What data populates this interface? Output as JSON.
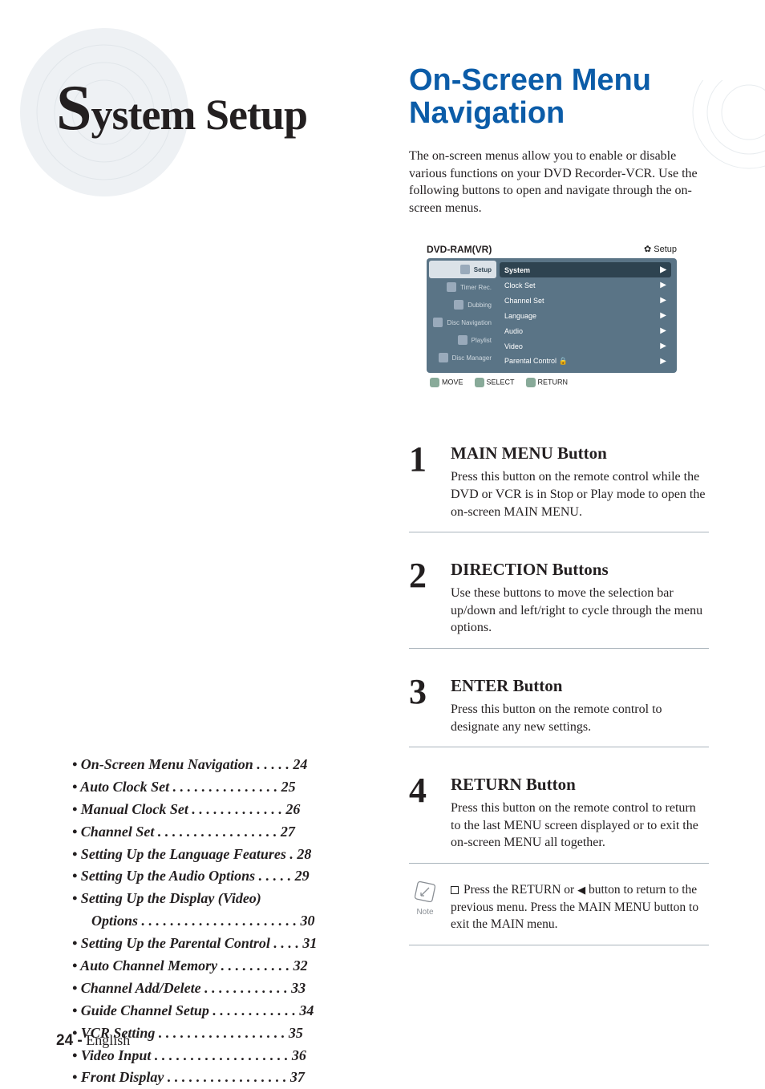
{
  "left": {
    "title_pre": "S",
    "title_rest": "ystem Setup",
    "sidebar_tab_pre": "S",
    "sidebar_tab_rest": "ystem Setup",
    "toc": [
      {
        "text": "On-Screen Menu Navigation",
        "dots": " . . . . . ",
        "page": "24"
      },
      {
        "text": "Auto Clock Set",
        "dots": " . . . . . . . . . . . . . . . ",
        "page": "25"
      },
      {
        "text": "Manual Clock Set",
        "dots": " . . . . . . . . . . . . . ",
        "page": "26"
      },
      {
        "text": "Channel Set",
        "dots": " . . . . . . . . . . . . . . . . . ",
        "page": "27"
      },
      {
        "text": "Setting Up the Language Features",
        "dots": " . ",
        "page": "28"
      },
      {
        "text": "Setting Up the Audio Options",
        "dots": " . . . . . ",
        "page": "29"
      },
      {
        "text": "Setting Up the Display (Video)",
        "dots": "",
        "page": ""
      },
      {
        "text": "Options",
        "dots": " . . . . . . . . . . . . . . . . . . . . . . ",
        "page": "30",
        "sub": true
      },
      {
        "text": "Setting Up the Parental Control",
        "dots": " . . . . ",
        "page": "31"
      },
      {
        "text": "Auto Channel Memory",
        "dots": " . . . . . . . . . . ",
        "page": "32"
      },
      {
        "text": "Channel Add/Delete",
        "dots": " . . . . . . . . . . . . ",
        "page": "33"
      },
      {
        "text": "Guide Channel Setup",
        "dots": " . . . . . . . . . . . . ",
        "page": "34"
      },
      {
        "text": "VCR Setting",
        "dots": " . . . . . . . . . . . . . . . . . . ",
        "page": "35"
      },
      {
        "text": "Video Input",
        "dots": " . . . . . . . . . . . . . . . . . . . ",
        "page": "36"
      },
      {
        "text": "Front Display",
        "dots": " . . . . . . . . . . . . . . . . . ",
        "page": "37"
      }
    ],
    "page_number_bold": "24 -",
    "page_number_rest": " English"
  },
  "right": {
    "title1": "On-Screen Menu",
    "title2": "Navigation",
    "intro": "The on-screen menus allow you to enable or disable various functions on your DVD Recorder-VCR. Use the following buttons to open and navigate through the on-screen menus.",
    "osd": {
      "header_left": "DVD-RAM(VR)",
      "header_right_icon": "✿",
      "header_right": "Setup",
      "nav": [
        "Setup",
        "Timer Rec.",
        "Dubbing",
        "Disc Navigation",
        "Playlist",
        "Disc Manager"
      ],
      "rows": [
        "System",
        "Clock Set",
        "Channel Set",
        "Language",
        "Audio",
        "Video",
        "Parental Control"
      ],
      "footer": [
        {
          "label": "MOVE"
        },
        {
          "label": "SELECT"
        },
        {
          "label": "RETURN"
        }
      ]
    },
    "sections": [
      {
        "num": "1",
        "head": "MAIN MENU Button",
        "body": "Press this button on the remote control while the DVD or VCR is in Stop or Play mode to open the on-screen MAIN MENU."
      },
      {
        "num": "2",
        "head": "DIRECTION Buttons",
        "body": "Use these buttons to move the selection bar up/down and left/right to cycle through the menu options."
      },
      {
        "num": "3",
        "head": "ENTER Button",
        "body": "Press this button on the remote control to designate any new settings."
      },
      {
        "num": "4",
        "head": "RETURN Button",
        "body": "Press this button on the remote control to return to the last MENU screen displayed or to exit the on-screen MENU all together."
      }
    ],
    "note_label": "Note",
    "note_text_a": "Press the RETURN or ",
    "note_text_b": " button to return to the previous menu. Press the MAIN MENU button to exit the MAIN menu."
  },
  "colors": {
    "blue": "#0b5ca8",
    "osd_bg": "#5a7486",
    "rule": "#aab4bc"
  }
}
